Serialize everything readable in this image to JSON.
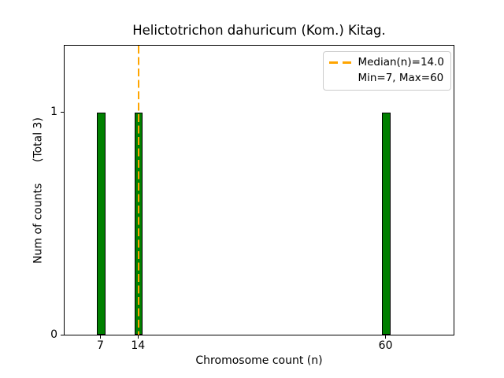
{
  "chart_data": {
    "type": "bar",
    "title": "Helictotrichon dahuricum (Kom.) Kitag.",
    "xlabel": "Chromosome count (n)",
    "ylabel": "Num of counts      (Total 3)",
    "total_counts": 3,
    "categories": [
      7,
      14,
      60
    ],
    "values": [
      1,
      1,
      1
    ],
    "bar_width_units": 1.5,
    "x_tick_labels": [
      "7",
      "14",
      "60"
    ],
    "y_tick_values": [
      0,
      1
    ],
    "y_tick_labels": [
      "0",
      "1"
    ],
    "xlim": [
      0.2,
      72.5
    ],
    "ylim": [
      0,
      1.3
    ],
    "median_n": 14.0,
    "min_n": 7,
    "max_n": 60,
    "grid": false,
    "legend": {
      "position": "upper right",
      "entries": [
        "Median(n)=14.0",
        "Min=7, Max=60"
      ]
    },
    "colors": {
      "bar_fill": "#008000",
      "bar_edge": "#000000",
      "median_line": "#FFA500",
      "legend_border": "#cccccc",
      "spine": "#000000",
      "background": "#ffffff"
    }
  }
}
